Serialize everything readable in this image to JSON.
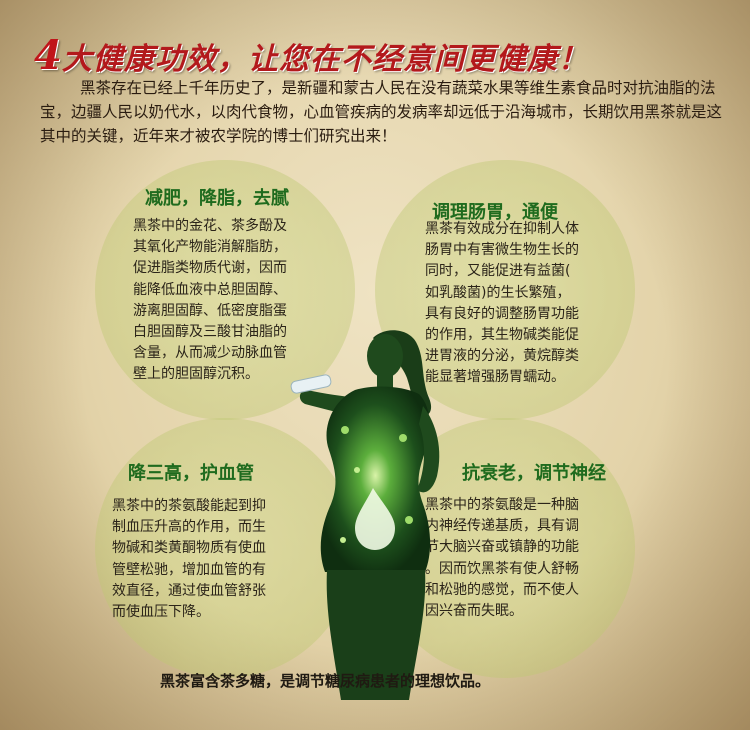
{
  "headline": {
    "number": "4",
    "text": "大健康功效，让您在不经意间更健康！"
  },
  "intro": "黑茶存在已经上千年历史了，是新疆和蒙古人民在没有蔬菜水果等维生素食品时对抗油脂的法宝，边疆人民以奶代水，以肉代食物，心血管疾病的发病率却远低于沿海城市，长期饮用黑茶就是这其中的关键，近年来才被农学院的博士们研究出来！",
  "benefits": [
    {
      "title": "减肥，降脂，去腻",
      "lines": [
        "黑茶中的金花、茶多酚及",
        "其氧化产物能消解脂肪，",
        "促进脂类物质代谢，因而",
        "能降低血液中总胆固醇、",
        "游离胆固醇、低密度脂蛋",
        "白胆固醇及三酸甘油脂的",
        "含量，从而减少动脉血管",
        "壁上的胆固醇沉积。"
      ]
    },
    {
      "title": "调理肠胃，通便",
      "lines": [
        "黑茶有效成分在抑制人体",
        "肠胃中有害微生物生长的",
        "同时，又能促进有益菌(",
        "如乳酸菌)的生长繁殖，",
        "具有良好的调整肠胃功能",
        "的作用，其生物碱类能促",
        "进胃液的分泌，黄烷醇类",
        "能显著增强肠胃蠕动。"
      ]
    },
    {
      "title": "降三高，护血管",
      "lines": [
        "黑茶中的茶氨酸能起到抑",
        "制血压升高的作用，而生",
        "物碱和类黄酮物质有使血",
        "管壁松驰，增加血管的有",
        "效直径，通过使血管舒张",
        "而使血压下降。"
      ]
    },
    {
      "title": "抗衰老，调节神经",
      "lines": [
        "黑茶中的茶氨酸是一种脑",
        "内神经传递基质，具有调",
        "节大脑兴奋或镇静的功能",
        "。因而饮黑茶有使人舒畅",
        "和松驰的感觉，而不使人",
        "因兴奋而失眠。"
      ]
    }
  ],
  "footer": "黑茶富含茶多糖，是调节糖尿病患者的理想饮品。"
}
